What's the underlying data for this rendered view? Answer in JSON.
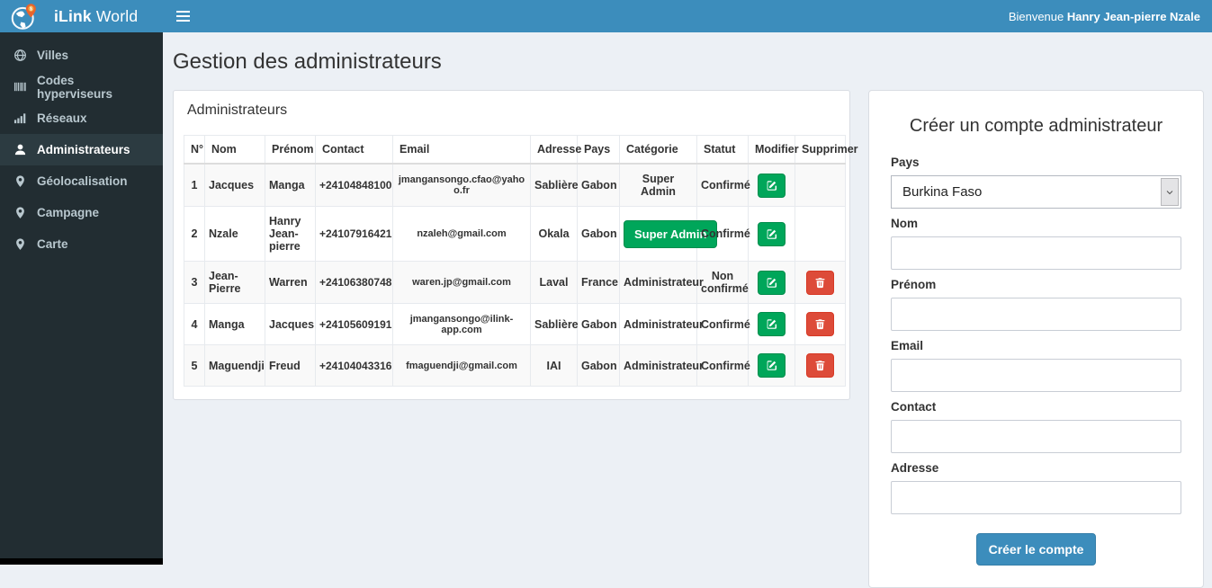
{
  "app": {
    "brand_bold": "iLink",
    "brand_rest": " World",
    "welcome_prefix": "Bienvenue ",
    "welcome_name": "Hanry Jean-pierre Nzale"
  },
  "colors": {
    "header_blue": "#3c8dbc",
    "sidebar_dark": "#222d32",
    "success_green": "#00a65a",
    "danger_red": "#dd4b39",
    "content_bg": "#ecf0f5"
  },
  "sidebar": {
    "items": [
      {
        "label": "Villes",
        "icon": "globe-icon",
        "active": false
      },
      {
        "label": "Codes hyperviseurs",
        "icon": "barcode-icon",
        "active": false
      },
      {
        "label": "Réseaux",
        "icon": "signal-icon",
        "active": false
      },
      {
        "label": "Administrateurs",
        "icon": "user-icon",
        "active": true
      },
      {
        "label": "Géolocalisation",
        "icon": "map-marker-icon",
        "active": false
      },
      {
        "label": "Campagne",
        "icon": "map-marker-icon",
        "active": false
      },
      {
        "label": "Carte",
        "icon": "map-marker-icon",
        "active": false
      }
    ]
  },
  "page": {
    "title": "Gestion des administrateurs"
  },
  "table_panel": {
    "title": "Administrateurs",
    "columns": [
      "N°",
      "Nom",
      "Prénom",
      "Contact",
      "Email",
      "Adresse",
      "Pays",
      "Catégorie",
      "Statut",
      "Modifier",
      "Supprimer"
    ],
    "rows": [
      {
        "num": "1",
        "nom": "Jacques",
        "prenom": "Manga",
        "contact": "+24104848100",
        "email": "jmangansongo.cfao@yahoo.fr",
        "adresse": "Sablière",
        "pays": "Gabon",
        "categorie": "Super Admin",
        "categorie_style": "text",
        "statut": "Confirmé",
        "can_delete": false
      },
      {
        "num": "2",
        "nom": "Nzale",
        "prenom": "Hanry Jean-pierre",
        "contact": "+24107916421",
        "email": "nzaleh@gmail.com",
        "adresse": "Okala",
        "pays": "Gabon",
        "categorie": "Super Admin",
        "categorie_style": "button",
        "statut": "Confirmé",
        "can_delete": false
      },
      {
        "num": "3",
        "nom": "Jean-Pierre",
        "prenom": "Warren",
        "contact": "+24106380748",
        "email": "waren.jp@gmail.com",
        "adresse": "Laval",
        "pays": "France",
        "categorie": "Administrateur",
        "categorie_style": "text",
        "statut": "Non confirmé",
        "can_delete": true
      },
      {
        "num": "4",
        "nom": "Manga",
        "prenom": "Jacques",
        "contact": "+24105609191",
        "email": "jmangansongo@ilink-app.com",
        "adresse": "Sablière",
        "pays": "Gabon",
        "categorie": "Administrateur",
        "categorie_style": "text",
        "statut": "Confirmé",
        "can_delete": true
      },
      {
        "num": "5",
        "nom": "Maguendji",
        "prenom": "Freud",
        "contact": "+24104043316",
        "email": "fmaguendji@gmail.com",
        "adresse": "IAI",
        "pays": "Gabon",
        "categorie": "Administrateur",
        "categorie_style": "text",
        "statut": "Confirmé",
        "can_delete": true
      }
    ],
    "edit_button_label": "Modifier",
    "delete_button_label": "Supprimer"
  },
  "form": {
    "title": "Créer un compte administrateur",
    "fields": [
      {
        "label": "Pays",
        "type": "select",
        "value": "Burkina Faso"
      },
      {
        "label": "Nom",
        "type": "text",
        "value": ""
      },
      {
        "label": "Prénom",
        "type": "text",
        "value": ""
      },
      {
        "label": "Email",
        "type": "text",
        "value": ""
      },
      {
        "label": "Contact",
        "type": "text",
        "value": ""
      },
      {
        "label": "Adresse",
        "type": "text",
        "value": ""
      }
    ],
    "submit_label": "Créer le compte"
  }
}
